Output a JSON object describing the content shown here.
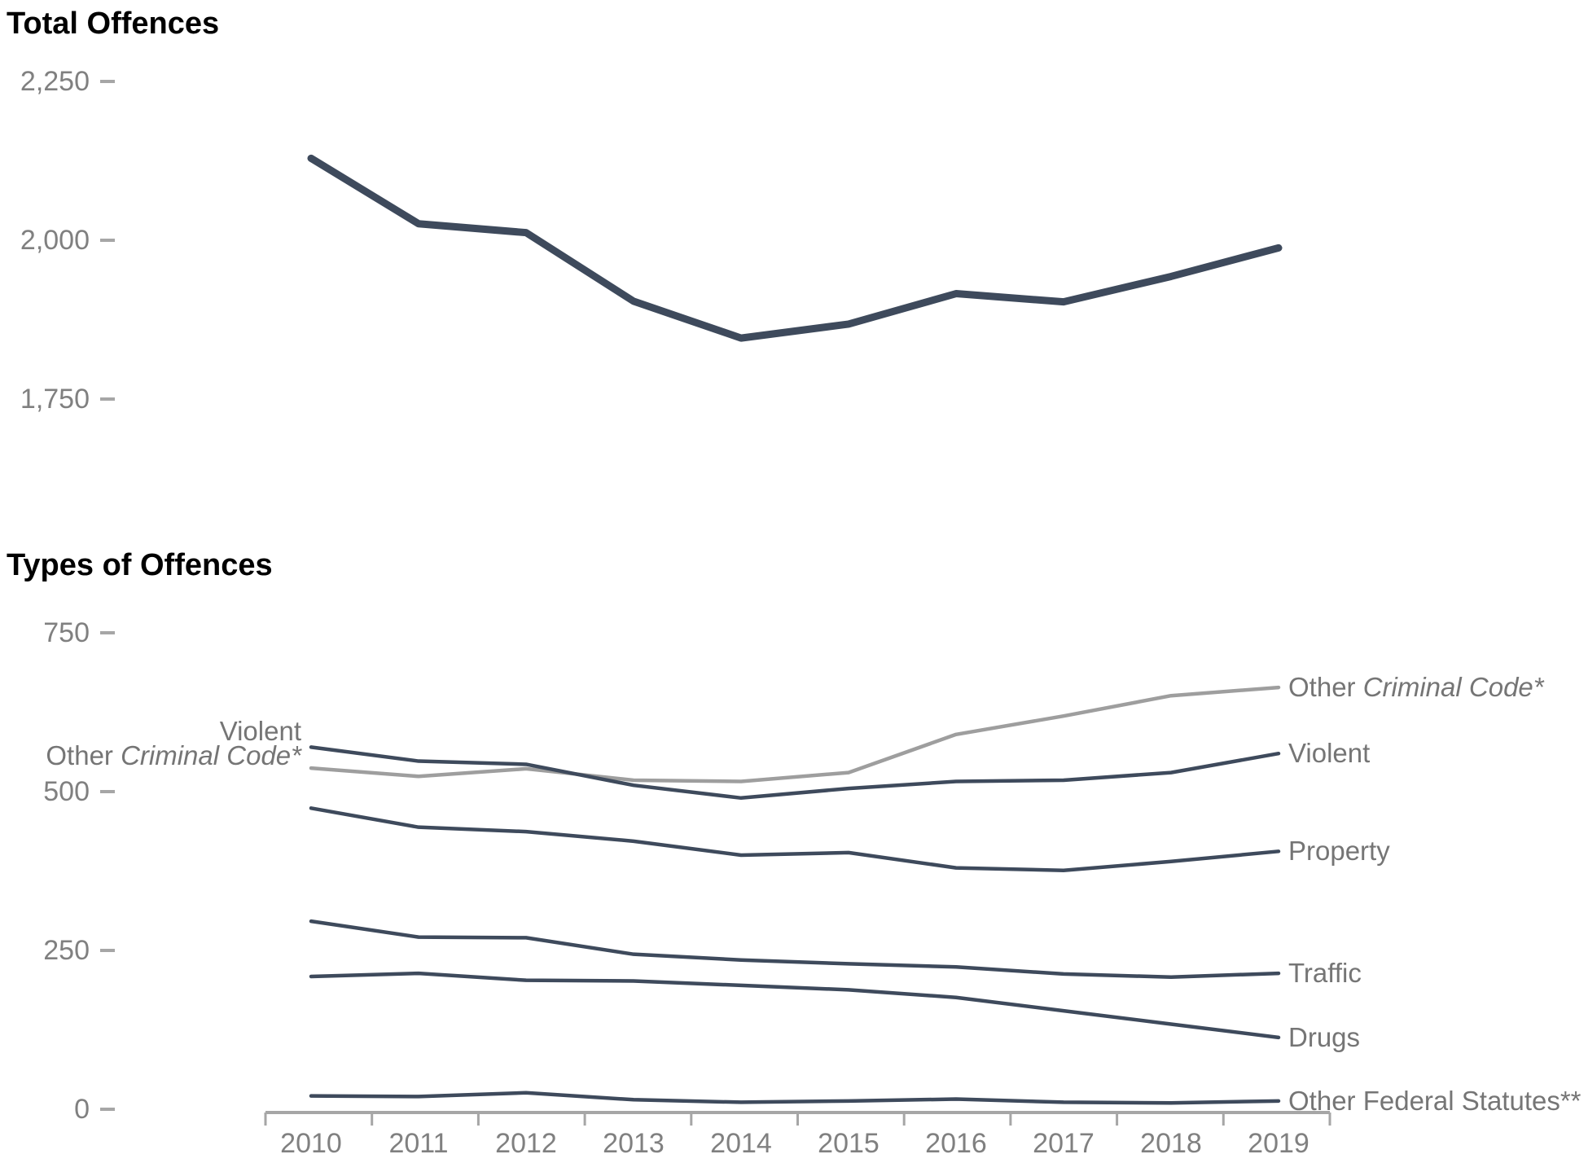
{
  "page": {
    "background": "#ffffff",
    "text_color_titles": "#000000",
    "text_color_axis": "#808080",
    "axis_color": "#a6a6a6"
  },
  "titles": {
    "top": "Total Offences",
    "bottom": "Types of Offences"
  },
  "chart_data": [
    {
      "id": "total-offences",
      "type": "line",
      "title": "Total Offences",
      "x": [
        2010,
        2011,
        2012,
        2013,
        2014,
        2015,
        2016,
        2017,
        2018,
        2019
      ],
      "xlabel": "",
      "ylabel": "",
      "ylim": [
        1750,
        2250
      ],
      "grid": false,
      "x_axis_visible": false,
      "legend": "none",
      "yticks": [
        {
          "value": 2250,
          "label": "2,250"
        },
        {
          "value": 2000,
          "label": "2,000"
        },
        {
          "value": 1750,
          "label": "1,750"
        }
      ],
      "series": [
        {
          "name": "Total Offences",
          "color": "#3e4a5c",
          "stroke_width": 9,
          "values": [
            2129,
            2026,
            2012,
            1904,
            1846,
            1868,
            1916,
            1903,
            1943,
            1988
          ]
        }
      ]
    },
    {
      "id": "types-of-offences",
      "type": "line",
      "title": "Types of Offences",
      "x": [
        2010,
        2011,
        2012,
        2013,
        2014,
        2015,
        2016,
        2017,
        2018,
        2019
      ],
      "xlabel": "",
      "ylabel": "",
      "ylim": [
        0,
        750
      ],
      "grid": false,
      "x_axis_visible": true,
      "x_tick_labels": [
        "2010",
        "2011",
        "2012",
        "2013",
        "2014",
        "2015",
        "2016",
        "2017",
        "2018",
        "2019"
      ],
      "legend": "end-of-line-labels",
      "yticks": [
        {
          "value": 750,
          "label": "750"
        },
        {
          "value": 500,
          "label": "500"
        },
        {
          "value": 250,
          "label": "250"
        },
        {
          "value": 0,
          "label": "0"
        }
      ],
      "series": [
        {
          "name": "Other Criminal Code*",
          "label_regular": "Other ",
          "label_italic": "Criminal Code*",
          "color": "#9e9e9e",
          "stroke_width": 4.5,
          "left_label": true,
          "values": [
            537,
            524,
            536,
            518,
            516,
            530,
            590,
            619,
            651,
            664
          ]
        },
        {
          "name": "Violent",
          "label_regular": "Violent",
          "label_italic": "",
          "color": "#3e4a5c",
          "stroke_width": 4.5,
          "left_label": true,
          "values": [
            570,
            548,
            543,
            510,
            490,
            505,
            516,
            518,
            530,
            560
          ]
        },
        {
          "name": "Property",
          "label_regular": "Property",
          "label_italic": "",
          "color": "#3e4a5c",
          "stroke_width": 4.5,
          "left_label": false,
          "values": [
            474,
            444,
            437,
            422,
            400,
            404,
            380,
            376,
            390,
            406
          ]
        },
        {
          "name": "Traffic",
          "label_regular": "Traffic",
          "label_italic": "",
          "color": "#3e4a5c",
          "stroke_width": 4.5,
          "left_label": false,
          "values": [
            296,
            271,
            270,
            244,
            235,
            229,
            224,
            213,
            208,
            214
          ]
        },
        {
          "name": "Drugs",
          "label_regular": "Drugs",
          "label_italic": "",
          "color": "#3e4a5c",
          "stroke_width": 4.5,
          "left_label": false,
          "values": [
            209,
            214,
            203,
            202,
            195,
            188,
            176,
            155,
            134,
            113
          ]
        },
        {
          "name": "Other Federal Statutes**",
          "label_regular": "Other Federal Statutes**",
          "label_italic": "",
          "color": "#3e4a5c",
          "stroke_width": 4.5,
          "left_label": false,
          "values": [
            21,
            20,
            26,
            15,
            11,
            13,
            16,
            11,
            10,
            13
          ]
        }
      ]
    }
  ]
}
